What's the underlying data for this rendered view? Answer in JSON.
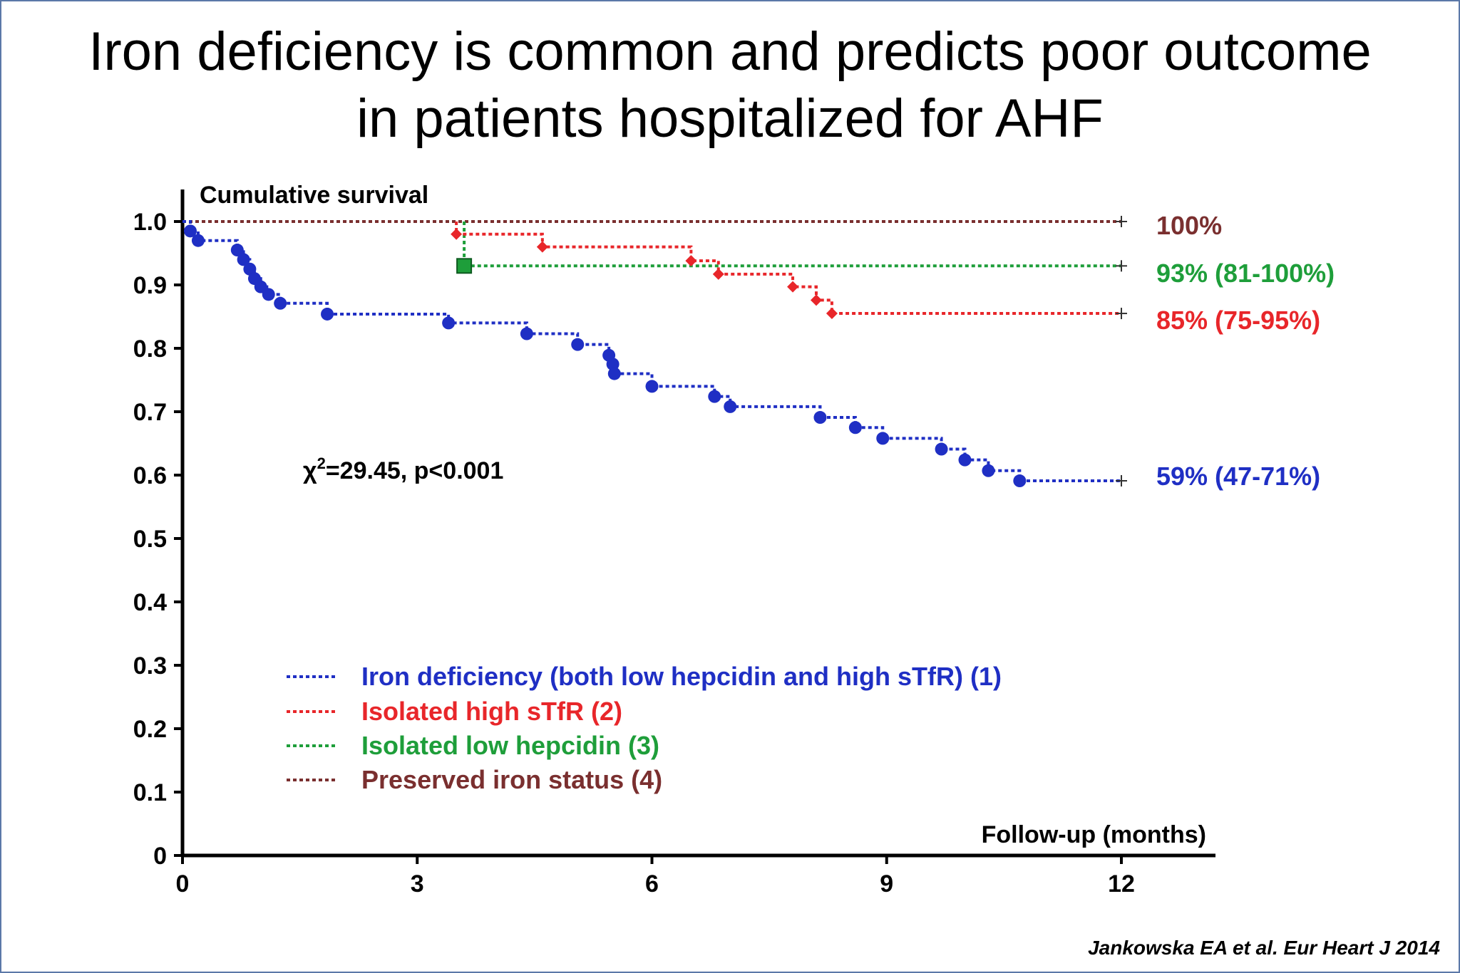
{
  "slide": {
    "title_line1": "Iron deficiency is common and predicts poor outcome",
    "title_line2": "in patients hospitalized for AHF",
    "citation": "Jankowska EA et al. Eur Heart J 2014"
  },
  "colors": {
    "blue": "#1f2fc4",
    "red": "#e8262a",
    "green": "#1e9e3a",
    "brown": "#7a2f2f",
    "frame": "#5b78a8"
  },
  "chart_data": {
    "type": "line",
    "subtype": "kaplan-meier",
    "title": "",
    "ylabel": "Cumulative survival",
    "xlabel": "Follow-up (months)",
    "xlim": [
      0,
      12
    ],
    "ylim": [
      0,
      1.0
    ],
    "xticks": [
      0,
      3,
      6,
      9,
      12
    ],
    "xtick_labels": [
      "0",
      "3",
      "6",
      "9",
      "12"
    ],
    "yticks": [
      0,
      0.1,
      0.2,
      0.3,
      0.4,
      0.5,
      0.6,
      0.7,
      0.8,
      0.9,
      1.0
    ],
    "ytick_labels": [
      "0",
      "0.1",
      "0.2",
      "0.3",
      "0.4",
      "0.5",
      "0.6",
      "0.7",
      "0.8",
      "0.9",
      "1.0"
    ],
    "grid": false,
    "legend_position": "lower-left",
    "annotation": {
      "prefix": "χ",
      "sup": "2",
      "suffix": "=29.45, p<0.001"
    },
    "series": [
      {
        "name": "Iron deficiency (both low hepcidin and high sTfR) (1)",
        "color": "#1f2fc4",
        "marker": "circle",
        "end_label": "59% (47-71%)",
        "steps": [
          [
            0,
            1.0
          ],
          [
            0.1,
            0.985
          ],
          [
            0.2,
            0.97
          ],
          [
            0.7,
            0.955
          ],
          [
            0.78,
            0.94
          ],
          [
            0.86,
            0.925
          ],
          [
            0.92,
            0.91
          ],
          [
            1.0,
            0.897
          ],
          [
            1.1,
            0.885
          ],
          [
            1.25,
            0.871
          ],
          [
            1.85,
            0.854
          ],
          [
            3.4,
            0.84
          ],
          [
            4.4,
            0.823
          ],
          [
            5.05,
            0.806
          ],
          [
            5.45,
            0.789
          ],
          [
            5.5,
            0.775
          ],
          [
            5.52,
            0.76
          ],
          [
            6.0,
            0.74
          ],
          [
            6.8,
            0.724
          ],
          [
            7.0,
            0.708
          ],
          [
            8.15,
            0.691
          ],
          [
            8.6,
            0.675
          ],
          [
            8.95,
            0.658
          ],
          [
            9.7,
            0.641
          ],
          [
            10.0,
            0.624
          ],
          [
            10.3,
            0.607
          ],
          [
            10.7,
            0.591
          ],
          [
            12.0,
            0.591
          ]
        ],
        "markers": [
          [
            0.1,
            0.985
          ],
          [
            0.2,
            0.97
          ],
          [
            0.7,
            0.955
          ],
          [
            0.78,
            0.94
          ],
          [
            0.86,
            0.925
          ],
          [
            0.92,
            0.91
          ],
          [
            1.0,
            0.897
          ],
          [
            1.1,
            0.885
          ],
          [
            1.25,
            0.871
          ],
          [
            1.85,
            0.854
          ],
          [
            3.4,
            0.84
          ],
          [
            4.4,
            0.823
          ],
          [
            5.05,
            0.806
          ],
          [
            5.45,
            0.789
          ],
          [
            5.5,
            0.775
          ],
          [
            5.52,
            0.76
          ],
          [
            6.0,
            0.74
          ],
          [
            6.8,
            0.724
          ],
          [
            7.0,
            0.708
          ],
          [
            8.15,
            0.691
          ],
          [
            8.6,
            0.675
          ],
          [
            8.95,
            0.658
          ],
          [
            9.7,
            0.641
          ],
          [
            10.0,
            0.624
          ],
          [
            10.3,
            0.607
          ],
          [
            10.7,
            0.591
          ]
        ]
      },
      {
        "name": "Isolated high sTfR (2)",
        "color": "#e8262a",
        "marker": "diamond",
        "end_label": "85% (75-95%)",
        "steps": [
          [
            3.5,
            1.0
          ],
          [
            3.5,
            0.98
          ],
          [
            4.6,
            0.96
          ],
          [
            6.5,
            0.938
          ],
          [
            6.85,
            0.917
          ],
          [
            7.8,
            0.897
          ],
          [
            8.1,
            0.876
          ],
          [
            8.3,
            0.855
          ],
          [
            12.0,
            0.855
          ]
        ],
        "markers": [
          [
            3.5,
            0.98
          ],
          [
            4.6,
            0.96
          ],
          [
            6.5,
            0.938
          ],
          [
            6.85,
            0.917
          ],
          [
            7.8,
            0.897
          ],
          [
            8.1,
            0.876
          ],
          [
            8.3,
            0.855
          ]
        ]
      },
      {
        "name": "Isolated low hepcidin (3)",
        "color": "#1e9e3a",
        "marker": "square",
        "end_label": "93% (81-100%)",
        "steps": [
          [
            3.6,
            1.0
          ],
          [
            3.6,
            0.93
          ],
          [
            12.0,
            0.93
          ]
        ],
        "markers": [
          [
            3.6,
            0.93
          ]
        ]
      },
      {
        "name": "Preserved iron status (4)",
        "color": "#7a2f2f",
        "marker": "none",
        "end_label": "100%",
        "steps": [
          [
            0,
            1.0
          ],
          [
            12.0,
            1.0
          ]
        ],
        "markers": []
      }
    ]
  }
}
